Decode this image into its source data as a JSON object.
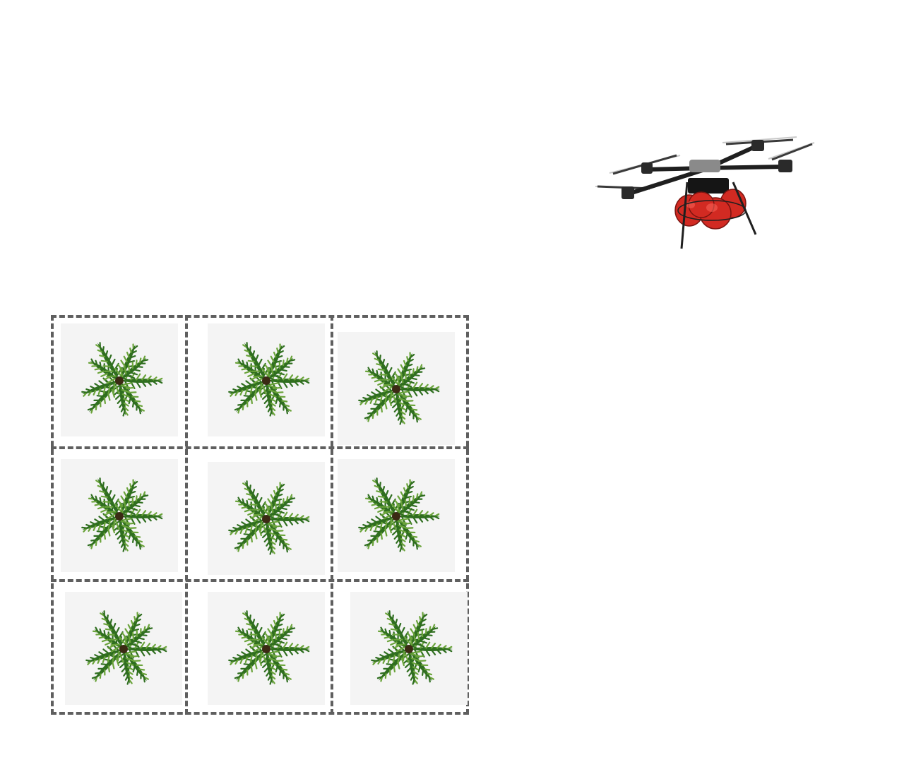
{
  "scene": {
    "grid": {
      "rows": 3,
      "cols": 3
    },
    "plot_icon": "palm-tree-top-view-icon",
    "drone_icon": "agricultural-spray-drone-icon",
    "colors": {
      "border": "#5f5f5f",
      "tile_bg": "#f4f4f4",
      "leaf_dark": "#2f6e1f",
      "leaf_light": "#6aa33a",
      "tank_red": "#d22a22",
      "frame_dark": "#2a2a2a"
    }
  }
}
